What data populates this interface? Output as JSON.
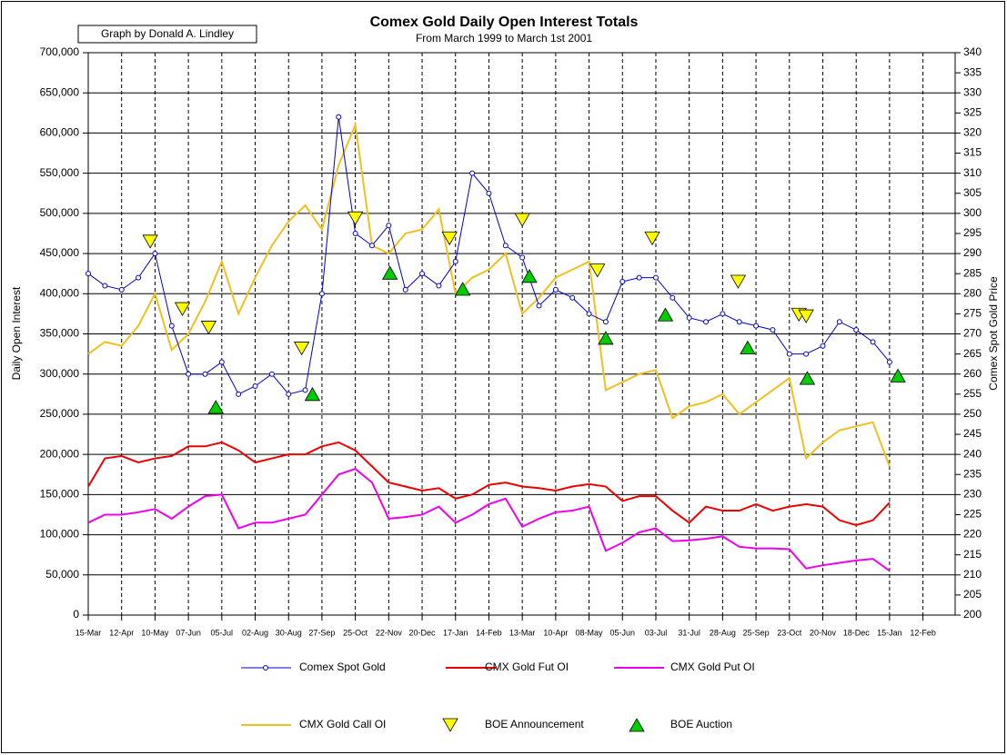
{
  "chart_data": {
    "type": "line",
    "title": "Comex Gold Daily Open Interest Totals",
    "subtitle": "From March 1999 to March 1st 2001",
    "credit": "Graph by Donald A. Lindley",
    "ylabel": "Daily Open Interest",
    "y2label": "Comex Spot Gold Price",
    "xlim": [
      0,
      727
    ],
    "xticks": [
      {
        "value": 0,
        "label": "15-Mar"
      },
      {
        "value": 28,
        "label": "12-Apr"
      },
      {
        "value": 56,
        "label": "10-May"
      },
      {
        "value": 84,
        "label": "07-Jun"
      },
      {
        "value": 112,
        "label": "05-Jul"
      },
      {
        "value": 140,
        "label": "02-Aug"
      },
      {
        "value": 168,
        "label": "30-Aug"
      },
      {
        "value": 196,
        "label": "27-Sep"
      },
      {
        "value": 224,
        "label": "25-Oct"
      },
      {
        "value": 252,
        "label": "22-Nov"
      },
      {
        "value": 280,
        "label": "20-Dec"
      },
      {
        "value": 308,
        "label": "17-Jan"
      },
      {
        "value": 336,
        "label": "14-Feb"
      },
      {
        "value": 364,
        "label": "13-Mar"
      },
      {
        "value": 392,
        "label": "10-Apr"
      },
      {
        "value": 420,
        "label": "08-May"
      },
      {
        "value": 448,
        "label": "05-Jun"
      },
      {
        "value": 476,
        "label": "03-Jul"
      },
      {
        "value": 504,
        "label": "31-Jul"
      },
      {
        "value": 532,
        "label": "28-Aug"
      },
      {
        "value": 560,
        "label": "25-Sep"
      },
      {
        "value": 588,
        "label": "23-Oct"
      },
      {
        "value": 616,
        "label": "20-Nov"
      },
      {
        "value": 644,
        "label": "18-Dec"
      },
      {
        "value": 672,
        "label": "15-Jan"
      },
      {
        "value": 700,
        "label": "12-Feb"
      }
    ],
    "ylim": [
      0,
      700000
    ],
    "yticks": [
      {
        "value": 0,
        "label": "0"
      },
      {
        "value": 50000,
        "label": "50,000"
      },
      {
        "value": 100000,
        "label": "100,000"
      },
      {
        "value": 150000,
        "label": "150,000"
      },
      {
        "value": 200000,
        "label": "200,000"
      },
      {
        "value": 250000,
        "label": "250,000"
      },
      {
        "value": 300000,
        "label": "300,000"
      },
      {
        "value": 350000,
        "label": "350,000"
      },
      {
        "value": 400000,
        "label": "400,000"
      },
      {
        "value": 450000,
        "label": "450,000"
      },
      {
        "value": 500000,
        "label": "500,000"
      },
      {
        "value": 550000,
        "label": "550,000"
      },
      {
        "value": 600000,
        "label": "600,000"
      },
      {
        "value": 650000,
        "label": "650,000"
      },
      {
        "value": 700000,
        "label": "700,000"
      }
    ],
    "y2lim": [
      200,
      340
    ],
    "y2ticks": [
      200,
      205,
      210,
      215,
      220,
      225,
      230,
      235,
      240,
      245,
      250,
      255,
      260,
      265,
      270,
      275,
      280,
      285,
      290,
      295,
      300,
      305,
      310,
      315,
      320,
      325,
      330,
      335,
      340
    ],
    "grid": true,
    "x": [
      0,
      14,
      28,
      42,
      56,
      70,
      84,
      98,
      112,
      126,
      140,
      154,
      168,
      182,
      196,
      210,
      224,
      238,
      252,
      266,
      280,
      294,
      308,
      322,
      336,
      350,
      364,
      378,
      392,
      406,
      420,
      434,
      448,
      462,
      476,
      490,
      504,
      518,
      532,
      546,
      560,
      574,
      588,
      602,
      616,
      630,
      644,
      658,
      672
    ],
    "series": [
      {
        "name": "Comex Spot Gold",
        "color": "#0000cc",
        "axis": "y2",
        "marker": "circle",
        "values": [
          285,
          282,
          281,
          284,
          290,
          272,
          260,
          260,
          263,
          255,
          257,
          260,
          255,
          256,
          280,
          324,
          295,
          292,
          297,
          281,
          285,
          282,
          288,
          310,
          305,
          292,
          289,
          277,
          281,
          279,
          275,
          273,
          283,
          284,
          284,
          279,
          274,
          273,
          275,
          273,
          272,
          271,
          265,
          265,
          267,
          273,
          271,
          268,
          263
        ]
      },
      {
        "name": "CMX Gold Fut OI",
        "color": "#ee0000",
        "values": [
          160000,
          195000,
          198000,
          190000,
          195000,
          198000,
          210000,
          210000,
          215000,
          205000,
          190000,
          195000,
          200000,
          200000,
          210000,
          215000,
          205000,
          185000,
          165000,
          160000,
          155000,
          158000,
          145000,
          150000,
          162000,
          165000,
          160000,
          158000,
          155000,
          160000,
          163000,
          160000,
          142000,
          148000,
          148000,
          130000,
          115000,
          135000,
          130000,
          130000,
          138000,
          130000,
          135000,
          138000,
          135000,
          118000,
          112000,
          118000,
          140000
        ]
      },
      {
        "name": "CMX Gold Put OI",
        "color": "#ee00ee",
        "values": [
          115000,
          125000,
          125000,
          128000,
          132000,
          120000,
          135000,
          148000,
          150000,
          108000,
          115000,
          115000,
          120000,
          125000,
          150000,
          175000,
          182000,
          165000,
          120000,
          122000,
          125000,
          135000,
          115000,
          125000,
          138000,
          145000,
          110000,
          120000,
          128000,
          130000,
          135000,
          80000,
          90000,
          103000,
          108000,
          92000,
          93000,
          95000,
          98000,
          85000,
          83000,
          83000,
          82000,
          58000,
          62000,
          65000,
          68000,
          70000,
          55000
        ]
      },
      {
        "name": "CMX Gold Call OI",
        "color": "#f0c020",
        "values": [
          325000,
          340000,
          335000,
          360000,
          400000,
          330000,
          350000,
          390000,
          440000,
          375000,
          420000,
          460000,
          490000,
          510000,
          480000,
          560000,
          610000,
          460000,
          450000,
          475000,
          480000,
          505000,
          400000,
          420000,
          430000,
          450000,
          375000,
          395000,
          420000,
          430000,
          440000,
          280000,
          290000,
          300000,
          305000,
          245000,
          260000,
          265000,
          275000,
          250000,
          265000,
          280000,
          295000,
          195000,
          215000,
          230000,
          235000,
          240000,
          185000
        ]
      },
      {
        "name": "BOE Announcement",
        "color": "#ffff00",
        "marker": "triangle-down",
        "x": [
          52,
          79,
          101,
          179,
          224,
          303,
          364,
          427,
          473,
          545,
          596,
          602
        ],
        "values": [
          465000,
          381000,
          358000,
          332000,
          494000,
          469000,
          492000,
          429000,
          469000,
          415000,
          374000,
          372000
        ]
      },
      {
        "name": "BOE Auction",
        "color": "#00cc00",
        "marker": "triangle-up",
        "x": [
          107,
          188,
          253,
          314,
          370,
          434,
          484,
          553,
          603,
          679
        ],
        "values": [
          259000,
          275000,
          426000,
          406000,
          422000,
          345000,
          374000,
          333000,
          295000,
          298000
        ]
      }
    ]
  }
}
